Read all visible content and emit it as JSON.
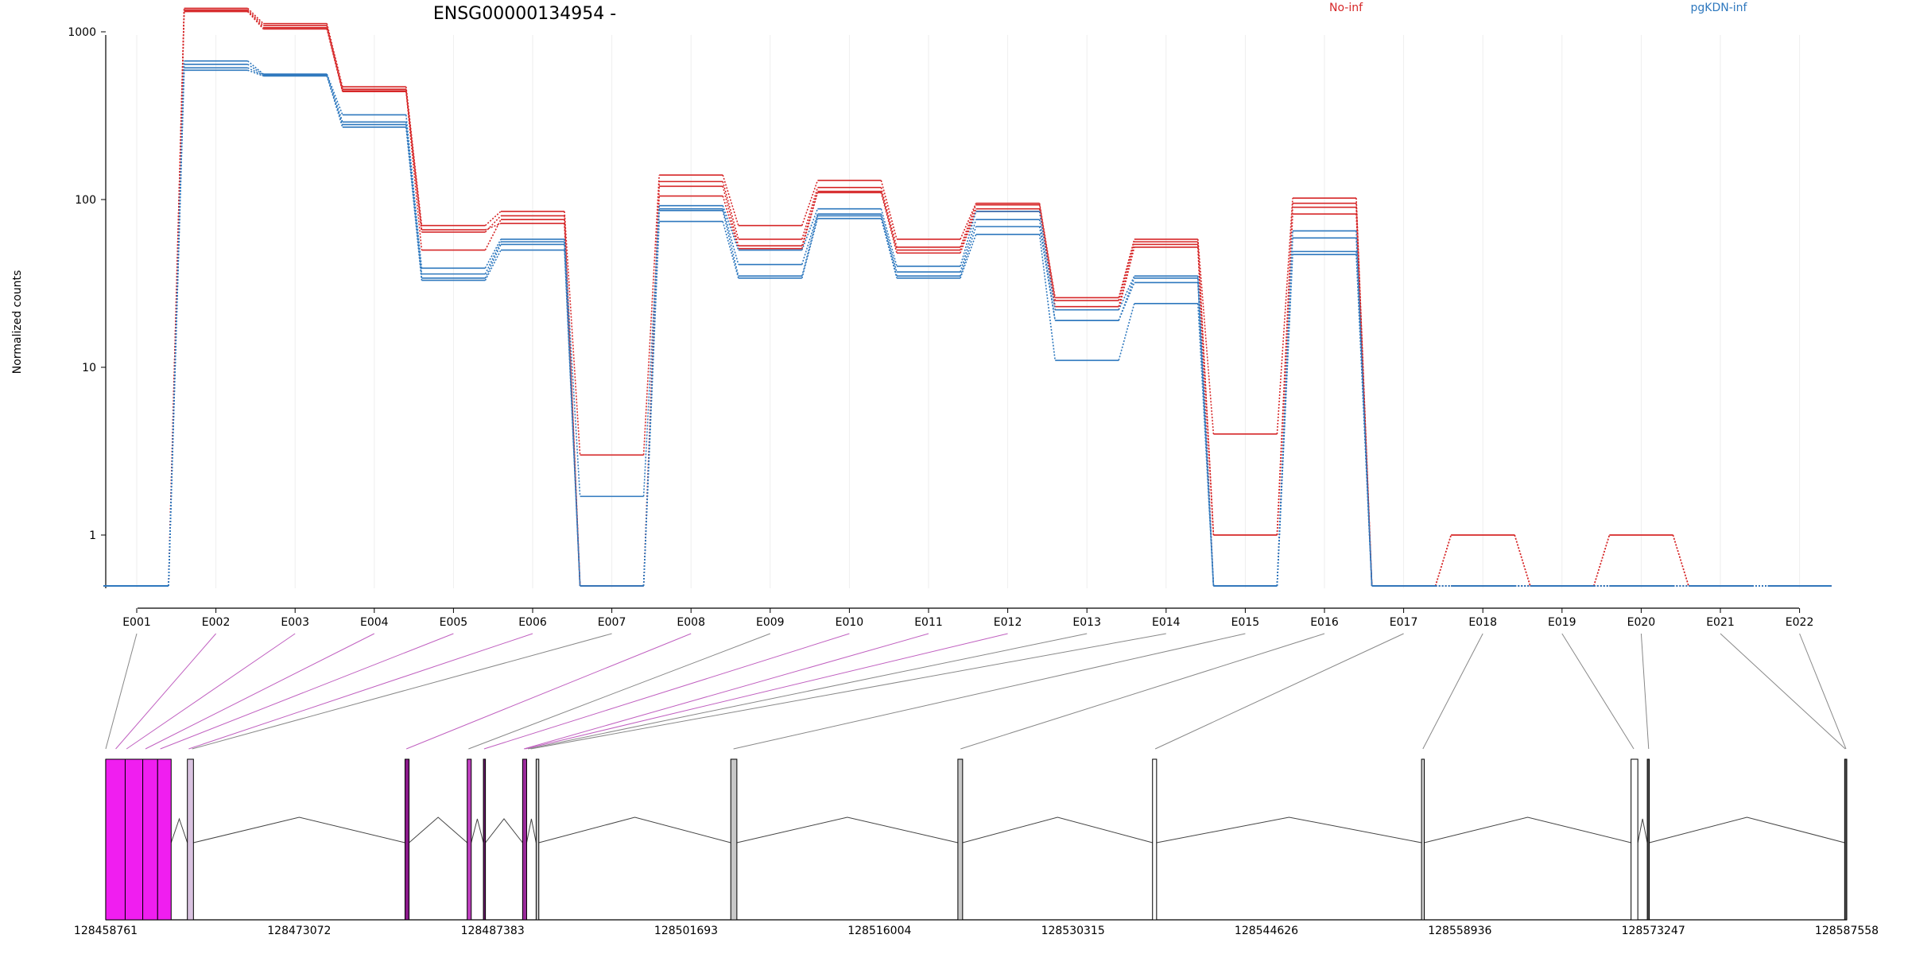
{
  "chart_data": {
    "type": "line",
    "title": "ENSG00000134954 -",
    "ylabel": "Normalized counts",
    "yscale": "log",
    "yticks": [
      1,
      10,
      100,
      1000
    ],
    "ytick_labels": [
      "1",
      "10",
      "100",
      "1000"
    ],
    "categories": [
      "E001",
      "E002",
      "E003",
      "E004",
      "E005",
      "E006",
      "E007",
      "E008",
      "E009",
      "E010",
      "E011",
      "E012",
      "E013",
      "E014",
      "E015",
      "E016",
      "E017",
      "E018",
      "E019",
      "E020",
      "E021",
      "E022"
    ],
    "legend": [
      {
        "name": "No-inf",
        "color": "#d62728"
      },
      {
        "name": "pgKDN-inf",
        "color": "#2e78be"
      }
    ],
    "series": [
      {
        "group": "No-inf",
        "values": [
          0,
          1380,
          1120,
          470,
          70,
          85,
          3,
          140,
          70,
          130,
          58,
          95,
          26,
          58,
          4,
          102,
          0,
          1,
          0,
          1,
          0,
          0
        ]
      },
      {
        "group": "No-inf",
        "values": [
          0,
          1350,
          1090,
          455,
          64,
          80,
          0,
          128,
          58,
          118,
          52,
          93,
          25,
          56,
          1,
          95,
          0,
          1,
          0,
          1,
          0,
          0
        ]
      },
      {
        "group": "No-inf",
        "values": [
          0,
          1330,
          1060,
          445,
          50,
          76,
          0,
          120,
          53,
          112,
          50,
          88,
          23,
          54,
          1,
          90,
          0,
          0,
          0,
          0,
          0,
          0
        ]
      },
      {
        "group": "No-inf",
        "values": [
          0,
          1320,
          1040,
          440,
          66,
          72,
          0,
          105,
          51,
          110,
          48,
          85,
          22,
          52,
          0,
          82,
          0,
          0,
          0,
          0,
          0,
          0
        ]
      },
      {
        "group": "pgKDN-inf",
        "values": [
          0,
          670,
          560,
          320,
          39,
          58,
          1.7,
          92,
          50,
          88,
          40,
          85,
          22,
          35,
          0,
          65,
          0,
          0,
          0,
          0,
          0,
          0
        ]
      },
      {
        "group": "pgKDN-inf",
        "values": [
          0,
          640,
          555,
          290,
          36,
          56,
          0,
          88,
          41,
          82,
          37,
          76,
          19,
          34,
          0,
          59,
          0,
          0,
          0,
          0,
          0,
          0
        ]
      },
      {
        "group": "pgKDN-inf",
        "values": [
          0,
          610,
          550,
          280,
          34,
          54,
          0,
          86,
          35,
          80,
          35,
          69,
          19,
          32,
          0,
          49,
          0,
          0,
          0,
          0,
          0,
          0
        ]
      },
      {
        "group": "pgKDN-inf",
        "values": [
          0,
          590,
          545,
          270,
          33,
          50,
          0,
          74,
          34,
          77,
          34,
          62,
          11,
          24,
          0,
          47,
          0,
          0,
          0,
          0,
          0,
          0
        ]
      }
    ],
    "genome_axis": {
      "range": [
        128458761,
        128587558
      ],
      "tick_labels": [
        "128458761",
        "128473072",
        "128487383",
        "128501693",
        "128516004",
        "128530315",
        "128544626",
        "128558936",
        "128573247",
        "128587558"
      ]
    },
    "exons": [
      {
        "id": "E001",
        "start": 128458761,
        "end": 128460200,
        "color": "#f01ef0"
      },
      {
        "id": "E002",
        "start": 128460200,
        "end": 128461500,
        "color": "#f01ef0"
      },
      {
        "id": "E003",
        "start": 128461500,
        "end": 128462600,
        "color": "#f01ef0"
      },
      {
        "id": "E004",
        "start": 128462600,
        "end": 128463600,
        "color": "#f01ef0"
      },
      {
        "id": "E005",
        "start": 128464800,
        "end": 128465250,
        "color": "#d9c2e0"
      },
      {
        "id": "E006",
        "start": 128480900,
        "end": 128481200,
        "color": "#8a1a8a"
      },
      {
        "id": "E007",
        "start": 128485500,
        "end": 128485800,
        "color": "#c040c0"
      },
      {
        "id": "E008",
        "start": 128486700,
        "end": 128486850,
        "color": "#6a1a6a"
      },
      {
        "id": "E009",
        "start": 128489600,
        "end": 128489900,
        "color": "#9a2a9a"
      },
      {
        "id": "E010",
        "start": 128490600,
        "end": 128490800,
        "color": "#c8c8c8"
      },
      {
        "id": "E011",
        "start": 128505000,
        "end": 128505450,
        "color": "#c8c8c8"
      },
      {
        "id": "E012",
        "start": 128521800,
        "end": 128522150,
        "color": "#c8c8c8"
      },
      {
        "id": "E013",
        "start": 128536200,
        "end": 128536500,
        "color": "#ffffff"
      },
      {
        "id": "E014",
        "start": 128556100,
        "end": 128556300,
        "color": "#d8d8d8"
      },
      {
        "id": "E015",
        "start": 128571600,
        "end": 128572100,
        "color": "#ffffff"
      },
      {
        "id": "E016",
        "start": 128572800,
        "end": 128572950,
        "color": "#555555"
      },
      {
        "id": "E017",
        "start": 128587400,
        "end": 128587558,
        "color": "#555555"
      }
    ],
    "connectors": [
      {
        "bin": "E001",
        "genome": 128458761,
        "color": "#888888"
      },
      {
        "bin": "E002",
        "genome": 128459500,
        "color": "#c060c0"
      },
      {
        "bin": "E003",
        "genome": 128460300,
        "color": "#c060c0"
      },
      {
        "bin": "E004",
        "genome": 128461700,
        "color": "#c060c0"
      },
      {
        "bin": "E005",
        "genome": 128462800,
        "color": "#c060c0"
      },
      {
        "bin": "E006",
        "genome": 128464900,
        "color": "#c060c0"
      },
      {
        "bin": "E007",
        "genome": 128465150,
        "color": "#888888"
      },
      {
        "bin": "E008",
        "genome": 128481000,
        "color": "#c060c0"
      },
      {
        "bin": "E009",
        "genome": 128485600,
        "color": "#888888"
      },
      {
        "bin": "E010",
        "genome": 128486750,
        "color": "#c060c0"
      },
      {
        "bin": "E011",
        "genome": 128489700,
        "color": "#c060c0"
      },
      {
        "bin": "E012",
        "genome": 128489800,
        "color": "#c060c0"
      },
      {
        "bin": "E013",
        "genome": 128490000,
        "color": "#888888"
      },
      {
        "bin": "E014",
        "genome": 128490200,
        "color": "#888888"
      },
      {
        "bin": "E015",
        "genome": 128505200,
        "color": "#888888"
      },
      {
        "bin": "E016",
        "genome": 128522000,
        "color": "#888888"
      },
      {
        "bin": "E017",
        "genome": 128536400,
        "color": "#888888"
      },
      {
        "bin": "E018",
        "genome": 128556200,
        "color": "#888888"
      },
      {
        "bin": "E019",
        "genome": 128571800,
        "color": "#888888"
      },
      {
        "bin": "E020",
        "genome": 128572900,
        "color": "#888888"
      },
      {
        "bin": "E021",
        "genome": 128587450,
        "color": "#888888"
      },
      {
        "bin": "E022",
        "genome": 128587500,
        "color": "#888888"
      }
    ],
    "grid": true
  }
}
